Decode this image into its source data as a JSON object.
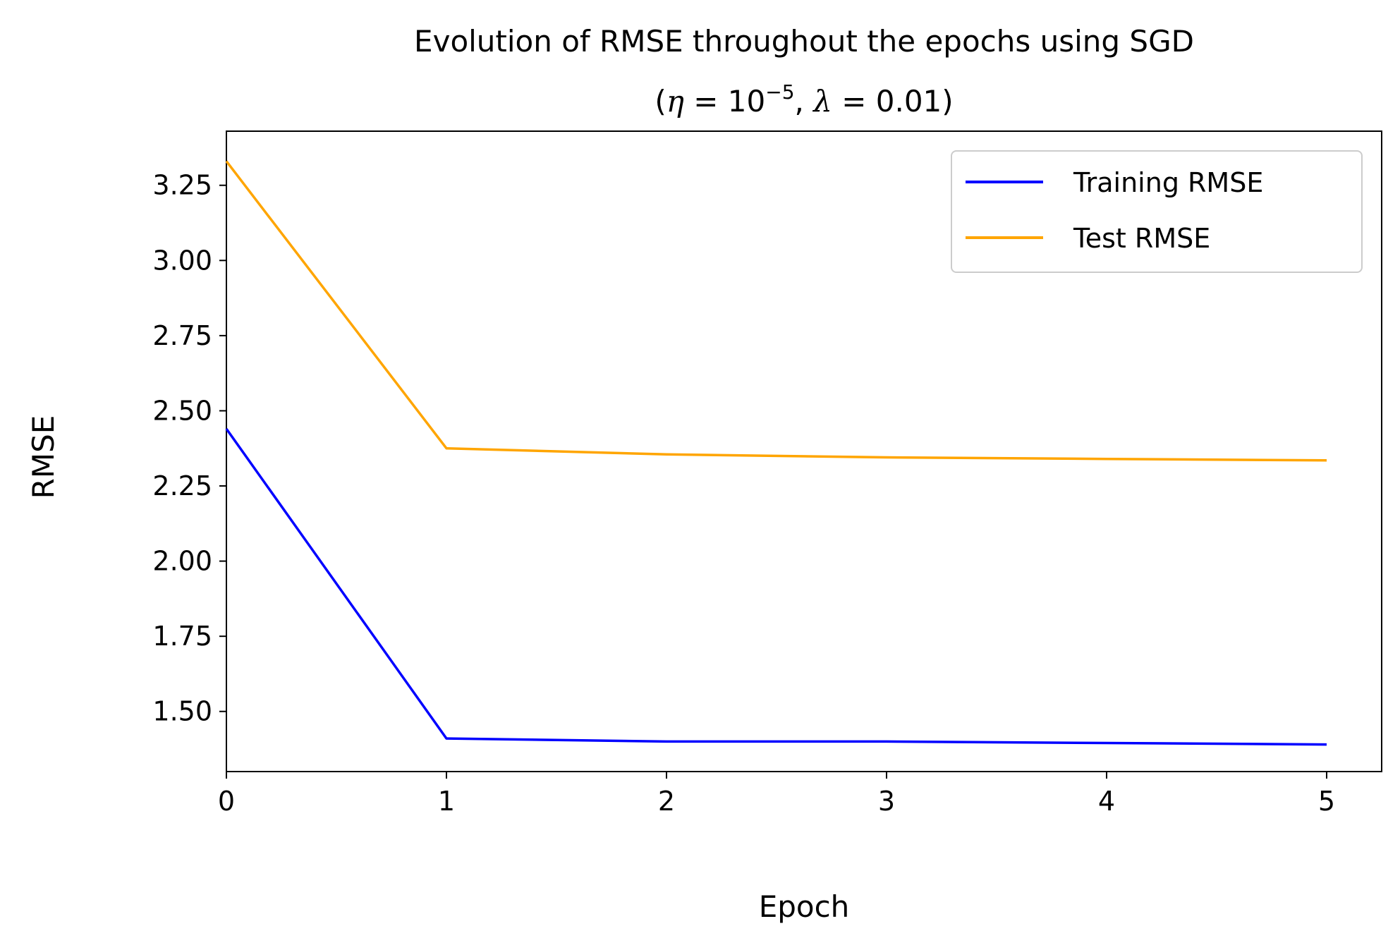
{
  "chart_data": {
    "type": "line",
    "title_line1": "Evolution of RMSE throughout the epochs using SGD",
    "title_line2": {
      "open_paren": "(",
      "eta": "η",
      "eq": " = ",
      "base": "10",
      "exponent": "−5",
      "sep": ", ",
      "lambda": "λ",
      "lambda_value": "0.01",
      "close_paren": ")"
    },
    "xlabel": "Epoch",
    "ylabel": "RMSE",
    "xlim": [
      0,
      5.25
    ],
    "ylim": [
      1.3,
      3.43
    ],
    "xticks": [
      0,
      1,
      2,
      3,
      4,
      5
    ],
    "xtick_labels": [
      "0",
      "1",
      "2",
      "3",
      "4",
      "5"
    ],
    "yticks": [
      1.5,
      1.75,
      2.0,
      2.25,
      2.5,
      2.75,
      3.0,
      3.25
    ],
    "ytick_labels": [
      "1.50",
      "1.75",
      "2.00",
      "2.25",
      "2.50",
      "2.75",
      "3.00",
      "3.25"
    ],
    "x": [
      0,
      1,
      2,
      3,
      4,
      5
    ],
    "series": [
      {
        "name": "Training RMSE",
        "color": "#0000ff",
        "values": [
          2.44,
          1.41,
          1.4,
          1.4,
          1.395,
          1.39
        ]
      },
      {
        "name": "Test RMSE",
        "color": "#ffa500",
        "values": [
          3.33,
          2.375,
          2.355,
          2.345,
          2.34,
          2.335
        ]
      }
    ],
    "legend": {
      "position": "upper right"
    },
    "grid": false
  }
}
